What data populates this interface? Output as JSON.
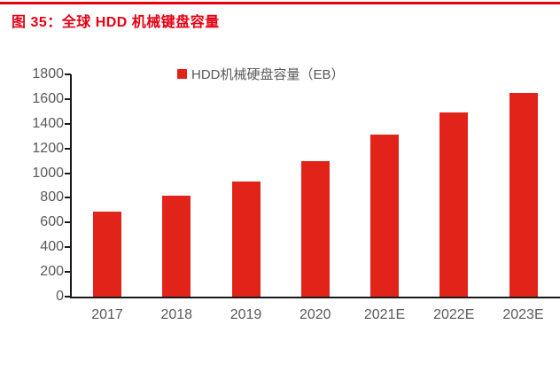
{
  "page": {
    "title": "图 35：全球 HDD 机械键盘容量"
  },
  "colors": {
    "title_red": "#e60012",
    "bar_red": "#e2231a",
    "axis_black": "#1a1a1a",
    "label_gray": "#595959",
    "background": "#ffffff"
  },
  "chart_data": {
    "type": "bar",
    "title": "图 35：全球 HDD 机械键盘容量",
    "legend": [
      "HDD机械硬盘容量（EB）"
    ],
    "legend_position": "top",
    "categories": [
      "2017",
      "2018",
      "2019",
      "2020",
      "2021E",
      "2022E",
      "2023E"
    ],
    "values": [
      690,
      820,
      930,
      1100,
      1310,
      1490,
      1650
    ],
    "ylabel": "",
    "xlabel": "",
    "ylim": [
      0,
      1800
    ],
    "ytick_step": 200,
    "grid": false,
    "bar_color": "#e2231a"
  }
}
